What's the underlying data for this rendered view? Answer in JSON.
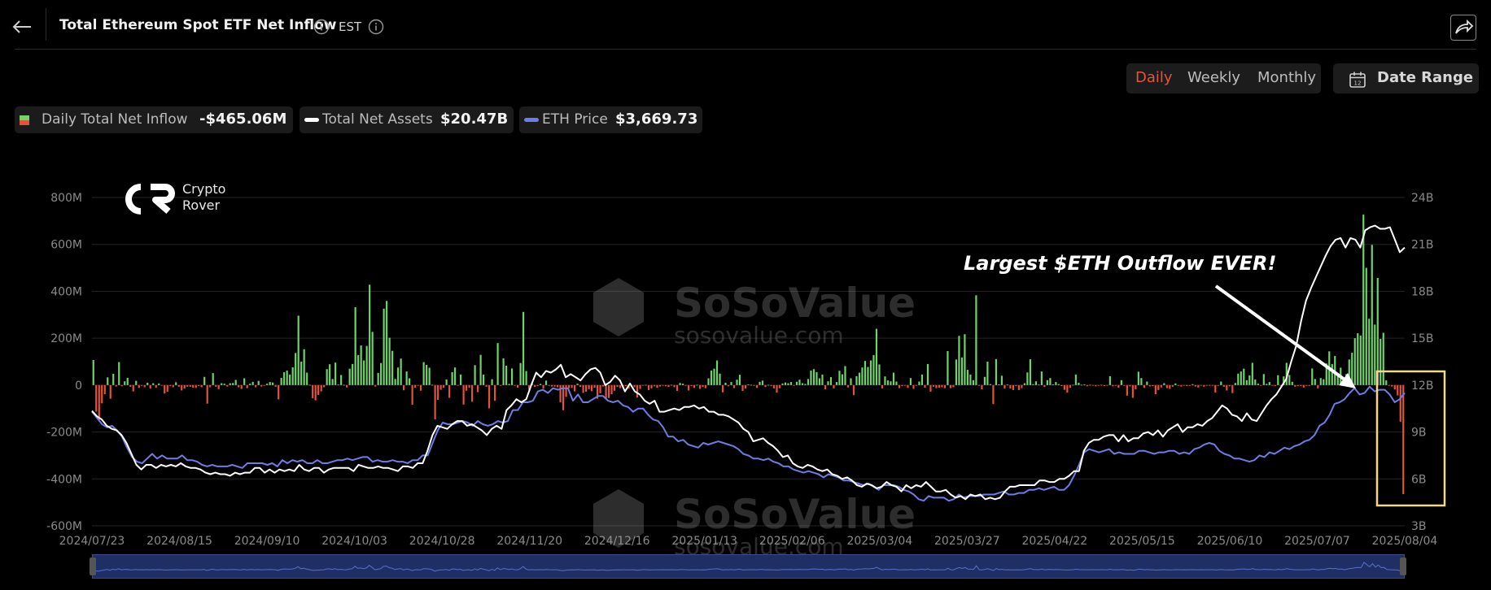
{
  "header": {
    "title": "Total Ethereum Spot ETF Net Inflow",
    "timezone": "EST"
  },
  "controls": {
    "periods": [
      "Daily",
      "Weekly",
      "Monthly"
    ],
    "active_period": "Daily",
    "date_range_label": "Date Range"
  },
  "legend": [
    {
      "name": "Daily Total Net Inflow",
      "value": "-$465.06M"
    },
    {
      "name": "Total Net Assets",
      "value": "$20.47B"
    },
    {
      "name": "ETH Price",
      "value": "$3,669.73"
    }
  ],
  "branding": {
    "logo_line1": "Crypto",
    "logo_line2": "Rover",
    "watermark_main": "SoSoValue",
    "watermark_url": "sosovalue.com"
  },
  "annotation": "Largest $ETH Outflow EVER!",
  "colors": {
    "inflow": "#6fd46a",
    "outflow": "#e5533f",
    "net_assets": "#ffffff",
    "eth_price": "#6e7ce6",
    "highlight_box": "#f1d98a"
  },
  "chart_data": {
    "type": "bar",
    "x_start": "2024/07/23",
    "x_end": "2025/08/04",
    "x_tick_labels": [
      "2024/07/23",
      "2024/08/15",
      "2024/09/10",
      "2024/10/03",
      "2024/10/28",
      "2024/11/20",
      "2024/12/16",
      "2025/01/13",
      "2025/02/06",
      "2025/03/04",
      "2025/03/27",
      "2025/04/22",
      "2025/05/15",
      "2025/06/10",
      "2025/07/07",
      "2025/08/04"
    ],
    "y_left_ticks": [
      "800M",
      "600M",
      "400M",
      "200M",
      "0",
      "-200M",
      "-400M",
      "-600M"
    ],
    "y_left_range": [
      -600,
      800
    ],
    "y_right_ticks": [
      "24B",
      "21B",
      "18B",
      "15B",
      "12B",
      "9B",
      "6B",
      "3B"
    ],
    "y_right_range": [
      3,
      24
    ],
    "y_left_unit": "M",
    "y_right_unit": "B",
    "series": [
      {
        "name": "Daily Total Net Inflow",
        "kind": "bar",
        "axis": "left",
        "values": [
          107,
          -113,
          -152,
          -78,
          -39,
          33,
          -58,
          48,
          -6,
          98,
          -5,
          16,
          31,
          -7,
          -27,
          18,
          -12,
          -3,
          -9,
          10,
          -15,
          8,
          -11,
          7,
          -2,
          -36,
          -28,
          -4,
          -9,
          12,
          -7,
          -23,
          -15,
          -7,
          -7,
          -11,
          -12,
          -4,
          -9,
          35,
          -79,
          -9,
          51,
          -7,
          -17,
          8,
          6,
          -6,
          8,
          9,
          22,
          -9,
          -16,
          29,
          -13,
          6,
          14,
          -9,
          18,
          -6,
          -2,
          6,
          13,
          11,
          -7,
          -61,
          31,
          55,
          62,
          45,
          76,
          137,
          296,
          100,
          153,
          53,
          1,
          -56,
          -65,
          -42,
          -27,
          -9,
          68,
          89,
          26,
          96,
          2,
          43,
          1,
          -10,
          70,
          90,
          332,
          128,
          169,
          105,
          167,
          428,
          227,
          -6,
          52,
          94,
          326,
          359,
          202,
          146,
          26,
          75,
          113,
          -22,
          58,
          29,
          -84,
          -11,
          -2,
          -24,
          98,
          86,
          74,
          1,
          -146,
          -63,
          -20,
          -11,
          24,
          -54,
          55,
          75,
          -1,
          45,
          -83,
          -24,
          -11,
          -71,
          85,
          -30,
          129,
          45,
          -7,
          -99,
          25,
          -67,
          179,
          -3,
          114,
          83,
          5,
          71,
          -2,
          -11,
          94,
          312,
          60,
          -19,
          7,
          -8,
          -4,
          5,
          -15,
          19,
          -3,
          -6,
          -6,
          -9,
          -73,
          -107,
          -50,
          -13,
          -12,
          -27,
          6,
          -8,
          -33,
          -28,
          -17,
          -26,
          -11,
          -58,
          -35,
          -6,
          -59,
          -55,
          -39,
          -24,
          -8,
          -13,
          -11,
          -4,
          -15,
          -6,
          -9,
          -53,
          -16,
          -2,
          1,
          -21,
          -14,
          -5,
          -12,
          -6,
          -3,
          -5,
          -8,
          1,
          -9,
          -25,
          9,
          6,
          -2,
          -23,
          -4,
          -12,
          1,
          -16,
          -8,
          -13,
          29,
          62,
          70,
          105,
          49,
          -31,
          10,
          -5,
          13,
          -13,
          23,
          44,
          -25,
          -15,
          3,
          1,
          -3,
          -12,
          14,
          19,
          -8,
          1,
          -4,
          -14,
          -32,
          -13,
          7,
          11,
          8,
          13,
          -2,
          14,
          23,
          8,
          5,
          26,
          62,
          68,
          55,
          29,
          45,
          -18,
          16,
          34,
          -14,
          13,
          61,
          46,
          81,
          -10,
          29,
          -43,
          38,
          53,
          75,
          103,
          77,
          105,
          128,
          240,
          88,
          -14,
          37,
          20,
          16,
          53,
          15,
          -13,
          -4,
          -2,
          -12,
          30,
          -16,
          -3,
          15,
          45,
          -11,
          90,
          -28,
          -7,
          -13,
          -11,
          -9,
          -13,
          145,
          -13,
          -9,
          109,
          210,
          118,
          217,
          65,
          45,
          21,
          383,
          -3,
          -18,
          35,
          100,
          4,
          -81,
          111,
          3,
          40,
          -15,
          2,
          -15,
          -21,
          -4,
          -21,
          -13,
          8,
          54,
          110,
          4,
          16,
          2,
          58,
          -8,
          21,
          30,
          3,
          13,
          4,
          -4,
          -20,
          -32,
          -11,
          1,
          45,
          10,
          1,
          3,
          -5,
          1,
          -1,
          -5,
          -2,
          1,
          -4,
          -2,
          38,
          -5,
          -3,
          -11,
          21,
          -3,
          -45,
          -5,
          -54,
          -18,
          57,
          30,
          -12,
          15,
          -5,
          -4,
          -39,
          -21,
          -10,
          8,
          -13,
          -16,
          -7,
          7,
          -1,
          -6,
          -1,
          -4,
          -3,
          4,
          -6,
          -10,
          -2,
          -7,
          -2,
          -3,
          -1,
          -32,
          -2,
          15,
          -7,
          -23,
          -5,
          -34,
          9,
          49,
          58,
          70,
          21,
          41,
          95,
          24,
          6,
          -2,
          47,
          5,
          13,
          -3,
          -4,
          42,
          -3,
          37,
          95,
          43,
          14,
          -7,
          -4,
          -4,
          -10,
          -3,
          -3,
          71,
          26,
          -14,
          30,
          25,
          92,
          144,
          90,
          124,
          38,
          74,
          -3,
          47,
          109,
          138,
          200,
          221,
          211,
          727,
          500,
          283,
          598,
          258,
          457,
          197,
          223,
          20,
          -1,
          -6,
          -19,
          -44,
          -156,
          -465
        ]
      },
      {
        "name": "Total Net Assets",
        "kind": "line",
        "axis": "right",
        "values": [
          10.35,
          10.0,
          9.8,
          9.4,
          9.2,
          9.1,
          8.8,
          8.3,
          7.6,
          6.9,
          6.6,
          6.9,
          6.9,
          6.7,
          6.9,
          6.8,
          6.9,
          6.8,
          7.0,
          6.8,
          6.7,
          6.7,
          6.6,
          6.4,
          6.3,
          6.4,
          6.3,
          6.3,
          6.2,
          6.4,
          6.3,
          6.4,
          6.4,
          6.7,
          6.7,
          6.4,
          6.6,
          6.4,
          6.6,
          6.5,
          6.6,
          6.5,
          6.9,
          6.6,
          6.5,
          6.7,
          6.7,
          6.4,
          6.6,
          6.7,
          6.7,
          6.7,
          6.7,
          6.5,
          6.9,
          6.8,
          6.7,
          6.7,
          6.8,
          6.7,
          6.7,
          6.6,
          6.5,
          6.8,
          6.8,
          6.7,
          7.0,
          7.0,
          7.8,
          8.8,
          9.4,
          9.3,
          9.2,
          9.5,
          9.7,
          9.7,
          9.4,
          9.5,
          9.3,
          9.1,
          8.8,
          9.2,
          9.4,
          9.2,
          10.4,
          10.7,
          11.1,
          10.9,
          11.1,
          12.0,
          12.8,
          12.5,
          12.9,
          12.8,
          13.0,
          13.3,
          12.5,
          12.7,
          12.5,
          12.3,
          12.7,
          13.0,
          13.1,
          12.8,
          12.0,
          12.2,
          12.6,
          12.3,
          11.6,
          12.1,
          11.6,
          11.4,
          11.0,
          10.8,
          11.0,
          10.3,
          10.3,
          10.4,
          10.5,
          10.4,
          10.6,
          10.6,
          10.7,
          10.5,
          10.6,
          10.3,
          10.3,
          10.1,
          10.1,
          10.0,
          9.8,
          9.6,
          9.2,
          9.0,
          8.4,
          8.5,
          8.6,
          8.3,
          8.1,
          7.8,
          7.4,
          7.5,
          7.0,
          6.8,
          6.7,
          6.9,
          6.8,
          6.6,
          6.5,
          6.6,
          6.3,
          6.2,
          6.0,
          6.1,
          5.9,
          5.6,
          5.5,
          5.7,
          5.6,
          5.4,
          5.5,
          5.8,
          5.6,
          5.5,
          5.2,
          5.6,
          5.4,
          5.6,
          5.5,
          5.8,
          5.5,
          5.2,
          5.2,
          5.3,
          5.0,
          4.8,
          4.9,
          4.7,
          5.0,
          4.9,
          5.0,
          4.7,
          4.8,
          4.7,
          4.8,
          5.2,
          5.5,
          5.5,
          5.6,
          5.6,
          5.6,
          5.6,
          5.9,
          5.9,
          5.8,
          5.8,
          6.0,
          6.0,
          6.2,
          6.5,
          6.5,
          7.8,
          8.3,
          8.5,
          8.5,
          8.7,
          8.8,
          8.8,
          8.4,
          8.8,
          8.4,
          8.6,
          8.6,
          8.9,
          9.0,
          8.8,
          9.1,
          8.7,
          9.1,
          9.3,
          9.5,
          9.0,
          9.3,
          9.3,
          9.5,
          9.4,
          9.7,
          9.9,
          10.3,
          10.7,
          10.5,
          10.1,
          10.0,
          9.7,
          10.2,
          9.8,
          9.7,
          10.2,
          10.7,
          11.1,
          11.4,
          11.9,
          12.4,
          13.5,
          14.5,
          16.1,
          17.4,
          18.2,
          18.9,
          19.6,
          20.3,
          20.9,
          21.3,
          21.4,
          20.8,
          21.4,
          21.3,
          20.8,
          21.9,
          22.1,
          22.2,
          22.0,
          22.0,
          22.1,
          21.3,
          20.5,
          20.8
        ],
        "note_values": "series values in billions, sampled across the full date range"
      },
      {
        "name": "ETH Price",
        "kind": "line",
        "axis": "right",
        "values": [
          10.3,
          9.9,
          9.5,
          9.3,
          9.4,
          9.1,
          8.7,
          8.0,
          7.4,
          7.1,
          7.0,
          7.3,
          7.6,
          7.3,
          7.5,
          7.3,
          7.3,
          7.3,
          7.5,
          7.2,
          7.2,
          7.1,
          6.9,
          6.8,
          6.9,
          6.8,
          6.8,
          6.8,
          6.9,
          6.8,
          6.7,
          7.0,
          7.0,
          7.0,
          7.0,
          6.9,
          7.0,
          6.8,
          7.2,
          7.0,
          7.2,
          7.1,
          7.2,
          7.0,
          7.0,
          7.2,
          7.0,
          7.0,
          7.1,
          7.2,
          7.2,
          7.3,
          7.2,
          7.3,
          7.4,
          7.4,
          7.1,
          7.2,
          7.1,
          7.1,
          7.2,
          7.1,
          7.1,
          7.0,
          7.2,
          7.2,
          7.5,
          7.5,
          8.3,
          9.1,
          9.6,
          9.5,
          9.5,
          9.6,
          9.7,
          9.6,
          9.4,
          9.7,
          9.5,
          9.4,
          9.5,
          9.7,
          9.6,
          9.7,
          10.4,
          10.4,
          10.9,
          10.9,
          11.0,
          11.6,
          11.7,
          11.5,
          11.8,
          11.7,
          11.8,
          11.8,
          11.0,
          11.4,
          10.9,
          10.9,
          11.1,
          11.3,
          11.3,
          11.0,
          10.9,
          11.0,
          10.7,
          10.6,
          10.3,
          10.5,
          10.5,
          10.1,
          9.8,
          9.7,
          9.3,
          8.7,
          8.7,
          8.4,
          8.5,
          8.2,
          8.1,
          8.0,
          8.3,
          8.2,
          8.3,
          8.4,
          8.3,
          8.2,
          8.1,
          7.9,
          7.6,
          7.5,
          7.3,
          7.3,
          7.2,
          7.3,
          7.1,
          7.0,
          6.8,
          6.8,
          6.6,
          6.5,
          6.4,
          6.5,
          6.4,
          6.3,
          6.1,
          6.3,
          6.2,
          6.1,
          5.9,
          5.9,
          5.8,
          5.7,
          5.6,
          5.7,
          5.5,
          5.3,
          5.6,
          5.6,
          5.6,
          5.5,
          5.3,
          5.2,
          5.0,
          4.7,
          4.6,
          4.9,
          4.8,
          4.8,
          4.8,
          4.6,
          4.7,
          5.0,
          4.8,
          4.9,
          4.9,
          4.9,
          5.0,
          5.0,
          5.0,
          5.1,
          5.2,
          5.0,
          5.0,
          5.1,
          5.1,
          5.3,
          5.3,
          5.4,
          5.3,
          5.4,
          5.5,
          5.3,
          5.3,
          5.6,
          6.2,
          6.9,
          7.7,
          7.9,
          7.8,
          7.7,
          7.8,
          7.9,
          7.6,
          7.7,
          7.6,
          7.6,
          7.6,
          7.8,
          7.8,
          7.7,
          7.6,
          7.7,
          7.7,
          7.8,
          7.8,
          7.6,
          7.7,
          7.6,
          7.9,
          8.0,
          8.2,
          8.3,
          8.2,
          7.8,
          7.6,
          7.5,
          7.3,
          7.3,
          7.2,
          7.1,
          7.2,
          7.5,
          7.4,
          7.7,
          7.6,
          7.8,
          8.0,
          7.9,
          8.1,
          8.2,
          8.4,
          8.5,
          8.8,
          9.4,
          9.6,
          10.1,
          10.8,
          10.9,
          11.1,
          11.5,
          11.8,
          11.4,
          11.5,
          11.9,
          11.6,
          11.7,
          11.7,
          11.4,
          10.9,
          11.1,
          11.5
        ]
      }
    ]
  }
}
